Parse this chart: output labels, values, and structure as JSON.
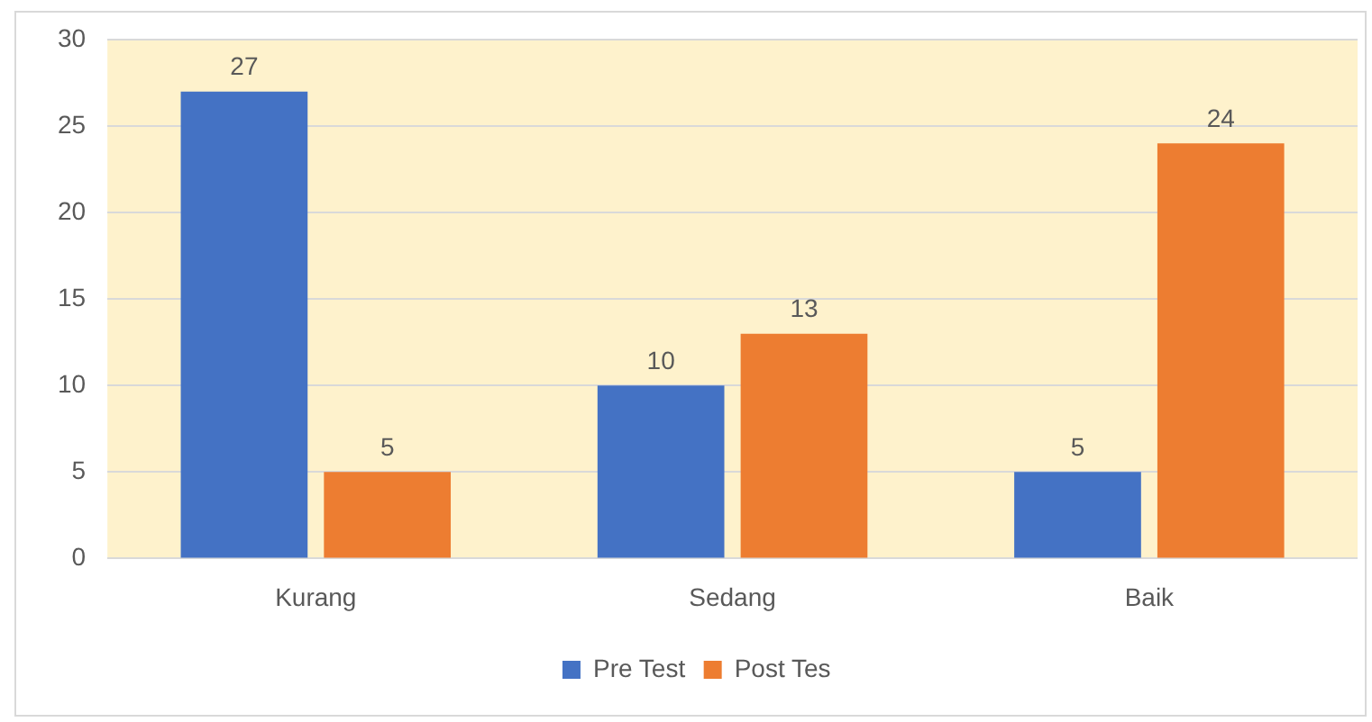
{
  "chart_data": {
    "type": "bar",
    "categories": [
      "Kurang",
      "Sedang",
      "Baik"
    ],
    "series": [
      {
        "name": "Pre Test",
        "color": "#4472c4",
        "values": [
          27,
          10,
          5
        ]
      },
      {
        "name": "Post Tes",
        "color": "#ed7d31",
        "values": [
          5,
          13,
          24
        ]
      }
    ],
    "ylim": [
      0,
      30
    ],
    "yticks": [
      0,
      5,
      10,
      15,
      20,
      25,
      30
    ],
    "grid": "y",
    "legend": "bottom",
    "data_labels": true
  }
}
